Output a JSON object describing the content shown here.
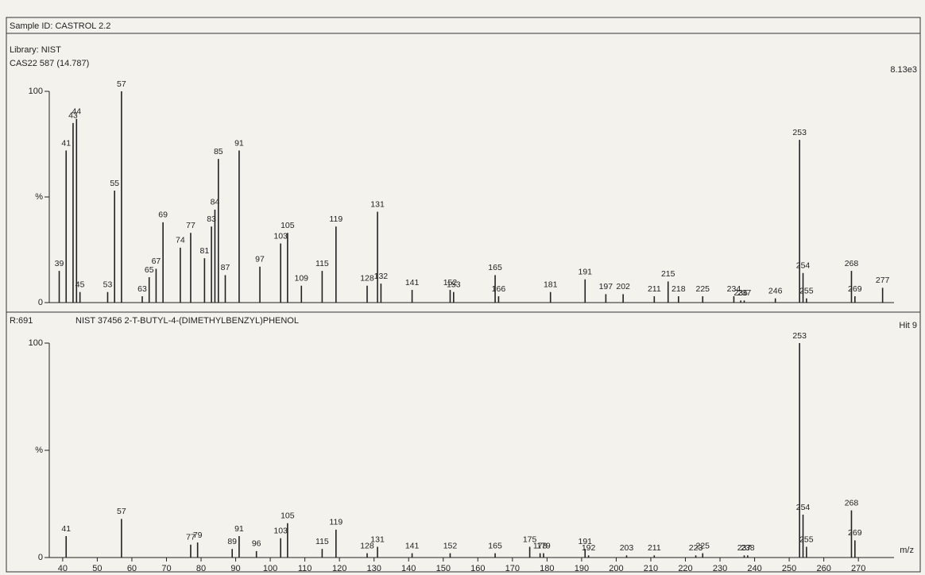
{
  "header": {
    "sample_id": "Sample ID: CASTROL 2.2",
    "library": "Library: NIST",
    "scan": "CAS22 587 (14.787)",
    "intensity": "8.13e3"
  },
  "chart_data": [
    {
      "type": "bar",
      "color": "#222222",
      "x": [
        39,
        41,
        43,
        44,
        45,
        53,
        55,
        57,
        63,
        65,
        67,
        69,
        74,
        77,
        81,
        83,
        84,
        85,
        87,
        91,
        97,
        103,
        105,
        109,
        115,
        119,
        128,
        131,
        132,
        141,
        152,
        153,
        165,
        166,
        181,
        191,
        197,
        202,
        211,
        215,
        218,
        225,
        234,
        236,
        237,
        246,
        253,
        254,
        255,
        268,
        269,
        277
      ],
      "values": [
        15,
        72,
        85,
        87,
        5,
        5,
        53,
        100,
        3,
        12,
        16,
        38,
        26,
        33,
        21,
        36,
        44,
        68,
        13,
        72,
        17,
        28,
        33,
        8,
        15,
        36,
        8,
        43,
        9,
        6,
        6,
        5,
        13,
        3,
        5,
        11,
        4,
        4,
        3,
        10,
        3,
        3,
        3,
        1,
        1,
        2,
        77,
        14,
        2,
        15,
        3,
        7
      ],
      "xlim": [
        37.5,
        278
      ],
      "ylim": [
        0,
        100
      ],
      "yticks": [
        0,
        {
          "value": 50,
          "label": "%"
        },
        100
      ]
    },
    {
      "type": "bar",
      "color": "#222222",
      "r_value": "R:691",
      "title": "NIST 37456 2-T-BUTYL-4-(DIMETHYLBENZYL)PHENOL",
      "hit": "Hit 9",
      "xlabel": "m/z",
      "x": [
        41,
        57,
        77,
        79,
        89,
        91,
        96,
        103,
        105,
        115,
        119,
        128,
        131,
        141,
        152,
        165,
        175,
        178,
        179,
        191,
        192,
        203,
        211,
        223,
        225,
        237,
        238,
        253,
        254,
        255,
        268,
        269
      ],
      "values": [
        10,
        18,
        6,
        7,
        4,
        10,
        3,
        9,
        16,
        4,
        13,
        2,
        5,
        2,
        2,
        2,
        5,
        2,
        2,
        4,
        1,
        1,
        1,
        1,
        2,
        1,
        1,
        100,
        20,
        5,
        22,
        8
      ],
      "xlim": [
        37.5,
        278
      ],
      "ylim": [
        0,
        100
      ],
      "yticks": [
        0,
        {
          "value": 50,
          "label": "%"
        },
        100
      ],
      "xticks": [
        40,
        50,
        60,
        70,
        80,
        90,
        100,
        110,
        120,
        130,
        140,
        150,
        160,
        170,
        180,
        190,
        200,
        210,
        220,
        230,
        240,
        250,
        260,
        270
      ]
    }
  ]
}
